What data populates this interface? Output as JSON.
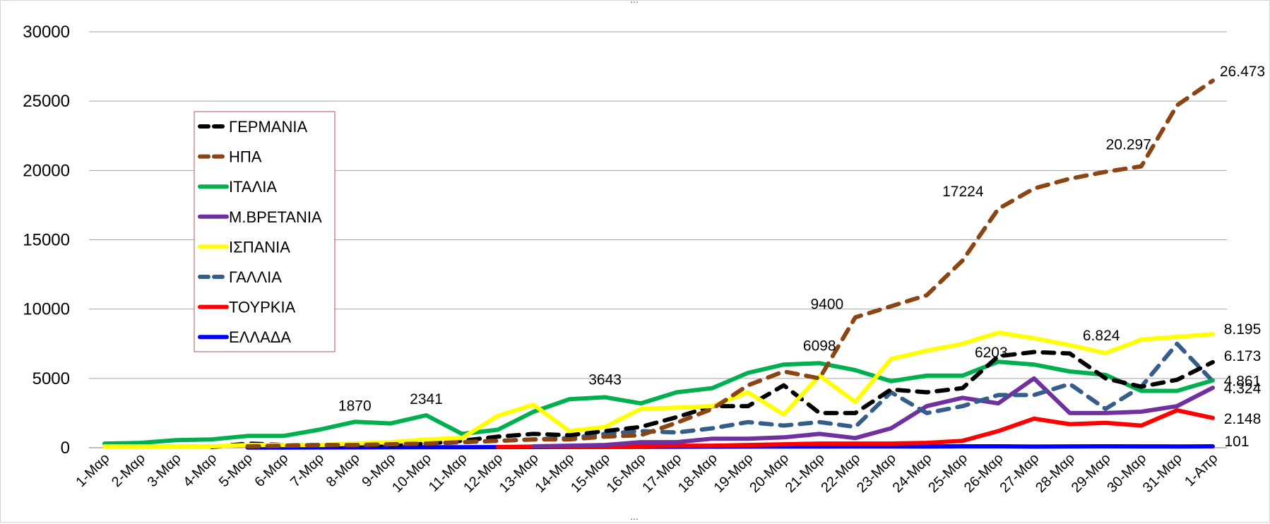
{
  "chart_data": {
    "type": "line",
    "title": "",
    "xlabel": "",
    "ylabel": "",
    "ylim": [
      0,
      30000
    ],
    "y_ticks": [
      "0",
      "5000",
      "10000",
      "15000",
      "20000",
      "25000",
      "30000"
    ],
    "grid": true,
    "legend_position": "left, inside plot area",
    "categories": [
      "1-Μαρ",
      "2-Μαρ",
      "3-Μαρ",
      "4-Μαρ",
      "5-Μαρ",
      "6-Μαρ",
      "7-Μαρ",
      "8-Μαρ",
      "9-Μαρ",
      "10-Μαρ",
      "11-Μαρ",
      "12-Μαρ",
      "13-Μαρ",
      "14-Μαρ",
      "15-Μαρ",
      "16-Μαρ",
      "17-Μαρ",
      "18-Μαρ",
      "19-Μαρ",
      "20-Μαρ",
      "21-Μαρ",
      "22-Μαρ",
      "23-Μαρ",
      "24-Μαρ",
      "25-Μαρ",
      "26-Μαρ",
      "27-Μαρ",
      "28-Μαρ",
      "29-Μαρ",
      "30-Μαρ",
      "31-Μαρ",
      "1-Απρ"
    ],
    "series": [
      {
        "name": "ΓΕΡΜΑΝΙΑ",
        "color": "#000000",
        "dashed": true,
        "values": [
          null,
          null,
          null,
          50,
          300,
          200,
          200,
          200,
          200,
          300,
          500,
          800,
          1000,
          900,
          1200,
          1500,
          2200,
          3000,
          3000,
          4500,
          2500,
          2500,
          4200,
          4000,
          4300,
          6600,
          6900,
          6800,
          5000,
          4400,
          4900,
          6173
        ]
      },
      {
        "name": "ΗΠΑ",
        "color": "#8b4513",
        "dashed": true,
        "values": [
          null,
          null,
          null,
          null,
          100,
          150,
          200,
          200,
          250,
          300,
          400,
          500,
          600,
          600,
          800,
          900,
          1800,
          2800,
          4500,
          5500,
          5000,
          9400,
          10200,
          11000,
          13500,
          17224,
          18700,
          19400,
          19900,
          20297,
          24700,
          26473
        ]
      },
      {
        "name": "ΙΤΑΛΙΑ",
        "color": "#00b050",
        "dashed": false,
        "values": [
          300,
          350,
          550,
          600,
          850,
          850,
          1300,
          1870,
          1750,
          2341,
          1000,
          1300,
          2600,
          3500,
          3643,
          3200,
          4000,
          4300,
          5400,
          6000,
          6098,
          5600,
          4800,
          5200,
          5200,
          6203,
          6000,
          5500,
          5250,
          4100,
          4100,
          4861
        ]
      },
      {
        "name": "Μ.ΒΡΕΤΑΝΙΑ",
        "color": "#7030a0",
        "dashed": false,
        "values": [
          null,
          null,
          null,
          null,
          null,
          null,
          null,
          null,
          null,
          null,
          null,
          null,
          100,
          150,
          200,
          400,
          400,
          650,
          650,
          750,
          1000,
          700,
          1400,
          3000,
          3600,
          3200,
          5000,
          2500,
          2500,
          2600,
          3000,
          4324
        ]
      },
      {
        "name": "ΙΣΠΑΝΙΑ",
        "color": "#ffff00",
        "dashed": false,
        "values": [
          100,
          100,
          100,
          100,
          200,
          200,
          200,
          300,
          400,
          600,
          700,
          2300,
          3100,
          1200,
          1500,
          2800,
          2900,
          3000,
          4000,
          2400,
          5200,
          3300,
          6400,
          7000,
          7500,
          8300,
          7900,
          7400,
          6824,
          7800,
          8000,
          8195
        ]
      },
      {
        "name": "ΓΑΛΛΙΑ",
        "color": "#355d8b",
        "dashed": true,
        "values": [
          null,
          null,
          null,
          null,
          100,
          150,
          200,
          200,
          250,
          300,
          400,
          500,
          600,
          700,
          1000,
          1200,
          1100,
          1400,
          1850,
          1600,
          1850,
          1500,
          4000,
          2500,
          3000,
          3800,
          3800,
          4600,
          2800,
          4400,
          7500,
          4800
        ]
      },
      {
        "name": "ΤΟΥΡΚΙΑ",
        "color": "#ff0000",
        "dashed": false,
        "values": [
          null,
          null,
          null,
          null,
          null,
          null,
          null,
          null,
          null,
          null,
          null,
          50,
          80,
          90,
          100,
          100,
          150,
          150,
          200,
          250,
          300,
          300,
          300,
          350,
          500,
          1200,
          2100,
          1700,
          1800,
          1600,
          2700,
          2148
        ]
      },
      {
        "name": "ΕΛΛΑΔΑ",
        "color": "#0000ff",
        "dashed": false,
        "values": [
          null,
          null,
          null,
          null,
          10,
          15,
          20,
          25,
          30,
          35,
          40,
          45,
          50,
          55,
          60,
          65,
          70,
          75,
          80,
          85,
          90,
          95,
          95,
          90,
          100,
          100,
          80,
          95,
          100,
          95,
          90,
          101
        ]
      }
    ],
    "annotations": [
      {
        "text": "1870",
        "x": "8-Μαρ",
        "y": 1870
      },
      {
        "text": "2341",
        "x": "10-Μαρ",
        "y": 2341
      },
      {
        "text": "3643",
        "x": "15-Μαρ",
        "y": 3643
      },
      {
        "text": "6098",
        "x": "21-Μαρ",
        "y": 6098
      },
      {
        "text": "9400",
        "x": "22-Μαρ",
        "y": 9400
      },
      {
        "text": "17224",
        "x": "26-Μαρ",
        "y": 17224
      },
      {
        "text": "6203",
        "x": "26-Μαρ",
        "y": 6203
      },
      {
        "text": "6.824",
        "x": "29-Μαρ",
        "y": 6824
      },
      {
        "text": "20.297",
        "x": "30-Μαρ",
        "y": 20297
      },
      {
        "text": "26.473",
        "x": "1-Απρ",
        "y": 26473
      },
      {
        "text": "8.195",
        "x": "1-Απρ",
        "y": 8195
      },
      {
        "text": "6.173",
        "x": "1-Απρ",
        "y": 6173
      },
      {
        "text": "4.861",
        "x": "1-Απρ",
        "y": 4861
      },
      {
        "text": "4.324",
        "x": "1-Απρ",
        "y": 4324
      },
      {
        "text": "2.148",
        "x": "1-Απρ",
        "y": 2148
      },
      {
        "text": "101",
        "x": "1-Απρ",
        "y": 101
      }
    ]
  }
}
